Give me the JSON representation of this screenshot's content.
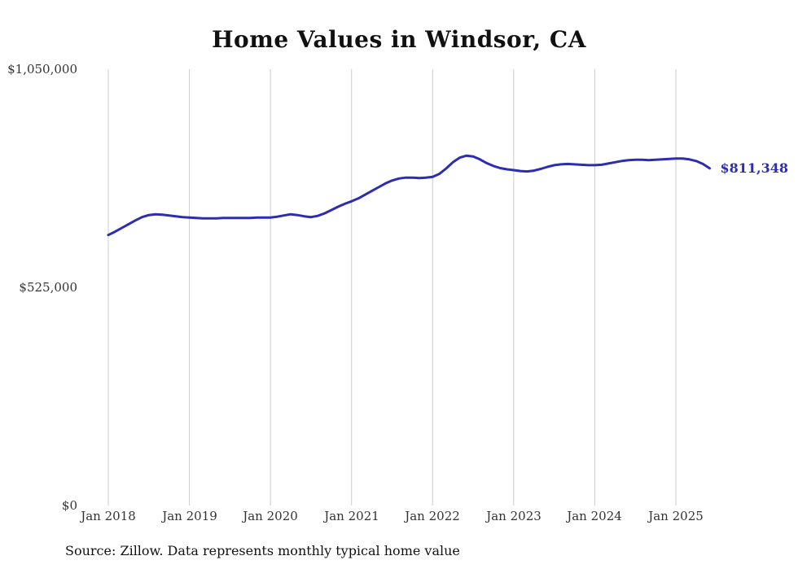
{
  "title": "Home Values in Windsor, CA",
  "source_note": "Source: Zillow. Data represents monthly typical home value",
  "end_label": "$811,348",
  "colors": {
    "line": "#2d2db0",
    "grid": "#cccccc",
    "title_text": "#111111",
    "axis_text": "#333333"
  },
  "chart_data": {
    "type": "line",
    "title": "Home Values in Windsor, CA",
    "ylabel": "",
    "xlabel": "",
    "ylim": [
      0,
      1050000
    ],
    "y_ticks": [
      0,
      525000,
      1050000
    ],
    "y_tick_labels": [
      "$0",
      "$525,000",
      "$1,050,000"
    ],
    "x_tick_labels": [
      "Jan 2018",
      "Jan 2019",
      "Jan 2020",
      "Jan 2021",
      "Jan 2022",
      "Jan 2023",
      "Jan 2024",
      "Jan 2025"
    ],
    "grid": "vertical-only",
    "legend": "none",
    "last_value_label": "$811,348",
    "months": [
      "2018-01",
      "2018-02",
      "2018-03",
      "2018-04",
      "2018-05",
      "2018-06",
      "2018-07",
      "2018-08",
      "2018-09",
      "2018-10",
      "2018-11",
      "2018-12",
      "2019-01",
      "2019-02",
      "2019-03",
      "2019-04",
      "2019-05",
      "2019-06",
      "2019-07",
      "2019-08",
      "2019-09",
      "2019-10",
      "2019-11",
      "2019-12",
      "2020-01",
      "2020-02",
      "2020-03",
      "2020-04",
      "2020-05",
      "2020-06",
      "2020-07",
      "2020-08",
      "2020-09",
      "2020-10",
      "2020-11",
      "2020-12",
      "2021-01",
      "2021-02",
      "2021-03",
      "2021-04",
      "2021-05",
      "2021-06",
      "2021-07",
      "2021-08",
      "2021-09",
      "2021-10",
      "2021-11",
      "2021-12",
      "2022-01",
      "2022-02",
      "2022-03",
      "2022-04",
      "2022-05",
      "2022-06",
      "2022-07",
      "2022-08",
      "2022-09",
      "2022-10",
      "2022-11",
      "2022-12",
      "2023-01",
      "2023-02",
      "2023-03",
      "2023-04",
      "2023-05",
      "2023-06",
      "2023-07",
      "2023-08",
      "2023-09",
      "2023-10",
      "2023-11",
      "2023-12",
      "2024-01",
      "2024-02",
      "2024-03",
      "2024-04",
      "2024-05",
      "2024-06",
      "2024-07",
      "2024-08",
      "2024-09",
      "2024-10",
      "2024-11",
      "2024-12",
      "2025-01",
      "2025-02",
      "2025-03",
      "2025-04",
      "2025-05",
      "2025-06"
    ],
    "series": [
      {
        "name": "Typical home value",
        "values": [
          651000,
          659000,
          668000,
          677000,
          686000,
          694000,
          699000,
          701000,
          700000,
          698000,
          696000,
          694000,
          693000,
          692000,
          691000,
          691000,
          691000,
          692000,
          692000,
          692000,
          692000,
          692000,
          693000,
          693000,
          693000,
          695000,
          698000,
          701000,
          699000,
          696000,
          694000,
          697000,
          703000,
          711000,
          719000,
          726000,
          732000,
          739000,
          748000,
          757000,
          766000,
          775000,
          782000,
          787000,
          789000,
          789000,
          788000,
          789000,
          791000,
          798000,
          811000,
          826000,
          837000,
          842000,
          840000,
          833000,
          824000,
          817000,
          812000,
          809000,
          807000,
          805000,
          804000,
          806000,
          810000,
          815000,
          819000,
          821000,
          822000,
          821000,
          820000,
          819000,
          819000,
          820000,
          823000,
          826000,
          829000,
          831000,
          832000,
          832000,
          831000,
          832000,
          833000,
          834000,
          835000,
          835000,
          833000,
          829000,
          822000,
          811348
        ]
      }
    ]
  }
}
